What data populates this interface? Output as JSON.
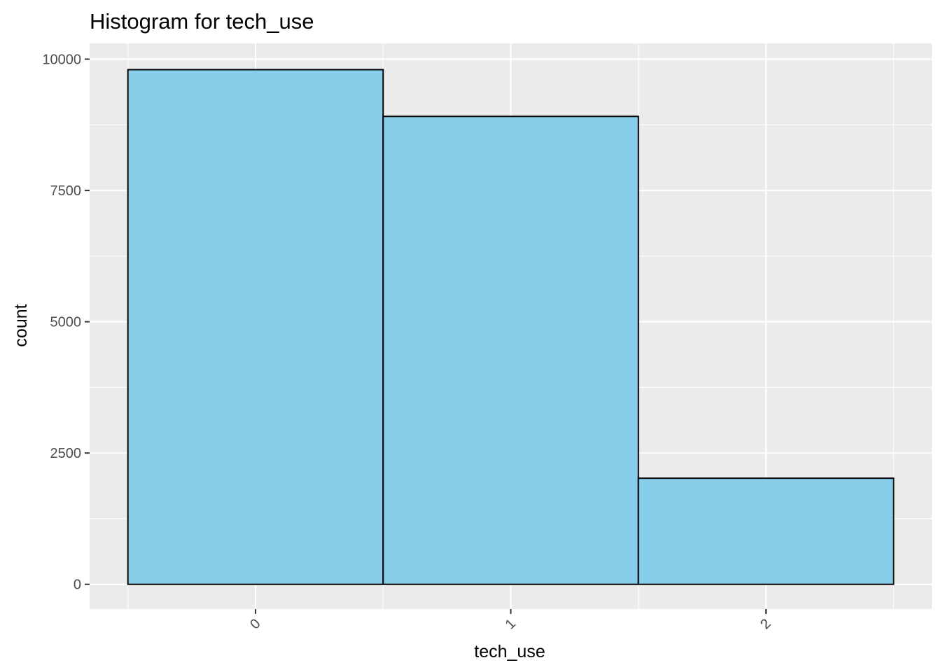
{
  "chart_data": {
    "type": "bar",
    "title": "Histogram for tech_use",
    "xlabel": "tech_use",
    "ylabel": "count",
    "categories": [
      "0",
      "1",
      "2"
    ],
    "x": [
      0,
      1,
      2
    ],
    "values": [
      9800,
      8910,
      2020
    ],
    "ylim": [
      -470,
      10300
    ],
    "xlim": [
      -0.65,
      2.65
    ],
    "yticks": [
      0,
      2500,
      5000,
      7500,
      10000
    ],
    "ytick_labels": [
      "0",
      "2500",
      "5000",
      "7500",
      "10000"
    ],
    "xticks": [
      0,
      1,
      2
    ],
    "xtick_labels": [
      "0",
      "1",
      "2"
    ],
    "bin_width": 1,
    "grid": true,
    "legend": "none",
    "colors": {
      "panel_background": "#ebebeb",
      "grid": "#ffffff",
      "bar_fill": "#87ceeb",
      "bar_outline": "#000000"
    }
  }
}
